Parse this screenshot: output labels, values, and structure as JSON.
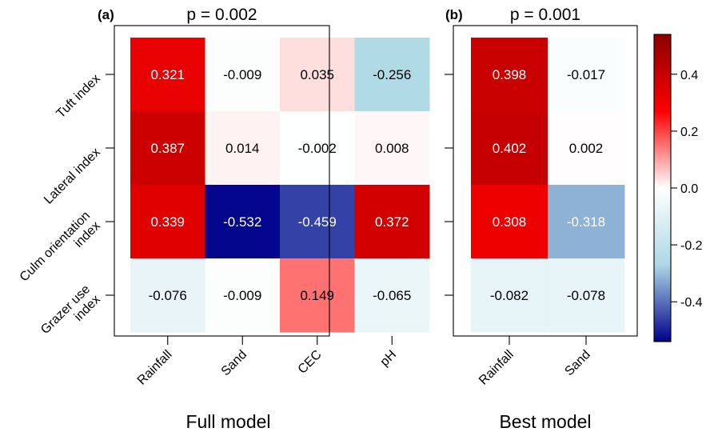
{
  "chart_data": [
    {
      "type": "heatmap",
      "panel_label": "(a)",
      "title": "p = 0.002",
      "xlabel": "Full model",
      "rows": [
        "Tuft index",
        "Lateral index",
        "Culm orientation index",
        "Grazer use index"
      ],
      "columns": [
        "Rainfall",
        "Sand",
        "CEC",
        "pH"
      ],
      "values": [
        [
          0.321,
          -0.009,
          0.035,
          -0.256
        ],
        [
          0.387,
          0.014,
          -0.002,
          0.008
        ],
        [
          0.339,
          -0.532,
          -0.459,
          0.372
        ],
        [
          -0.076,
          -0.009,
          0.149,
          -0.065
        ]
      ]
    },
    {
      "type": "heatmap",
      "panel_label": "(b)",
      "title": "p = 0.001",
      "xlabel": "Best model",
      "rows": [
        "Tuft index",
        "Lateral index",
        "Culm orientation index",
        "Grazer use index"
      ],
      "columns": [
        "Rainfall",
        "Sand"
      ],
      "values": [
        [
          0.398,
          -0.017
        ],
        [
          0.402,
          0.002
        ],
        [
          0.308,
          -0.318
        ],
        [
          -0.082,
          -0.078
        ]
      ]
    }
  ],
  "row_label_lines": [
    [
      "Tuft index"
    ],
    [
      "Lateral index"
    ],
    [
      "Culm orientation",
      "index"
    ],
    [
      "Grazer use",
      "index"
    ]
  ],
  "colorbar": {
    "range": [
      -0.54,
      0.54
    ],
    "ticks": [
      -0.4,
      -0.2,
      0.0,
      0.2,
      0.4
    ],
    "tick_labels": [
      "-0.4",
      "-0.2",
      "0.0",
      "0.2",
      "0.4"
    ],
    "colors": [
      "#00008b",
      "#add8e6",
      "#ffffff",
      "#ff0000",
      "#8b0000"
    ]
  }
}
